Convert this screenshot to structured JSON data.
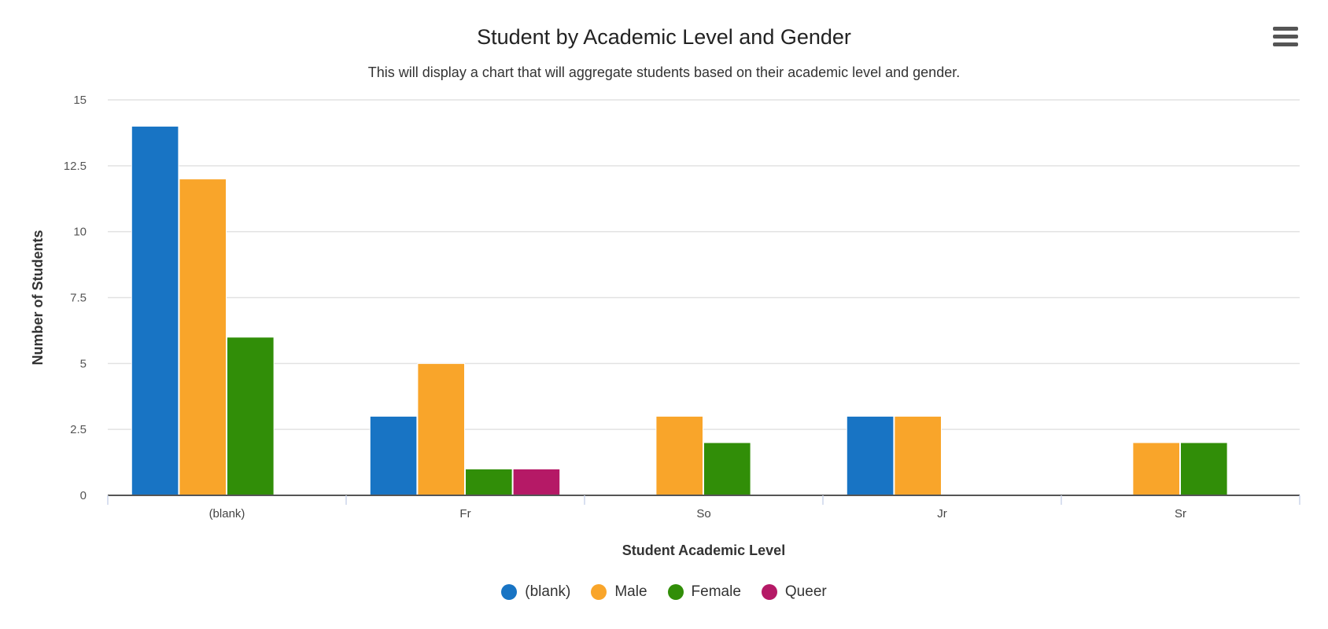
{
  "chart_data": {
    "type": "bar",
    "title": "Student by Academic Level and Gender",
    "subtitle": "This will display a chart that will aggregate students based on their academic level and gender.",
    "xlabel": "Student Academic Level",
    "ylabel": "Number of Students",
    "categories": [
      "(blank)",
      "Fr",
      "So",
      "Jr",
      "Sr"
    ],
    "ylim": [
      0,
      15
    ],
    "yticks": [
      "0",
      "2.5",
      "5",
      "7.5",
      "10",
      "12.5",
      "15"
    ],
    "grid": true,
    "legend_position": "bottom",
    "series": [
      {
        "name": "(blank)",
        "color": "#1874c4",
        "values": [
          14,
          3,
          0,
          3,
          0
        ]
      },
      {
        "name": "Male",
        "color": "#f9a52a",
        "values": [
          12,
          5,
          3,
          3,
          2
        ]
      },
      {
        "name": "Female",
        "color": "#318e08",
        "values": [
          6,
          1,
          2,
          0,
          2
        ]
      },
      {
        "name": "Queer",
        "color": "#b51966",
        "values": [
          0,
          1,
          0,
          0,
          0
        ]
      }
    ]
  },
  "menu_icon": "hamburger-menu-icon"
}
